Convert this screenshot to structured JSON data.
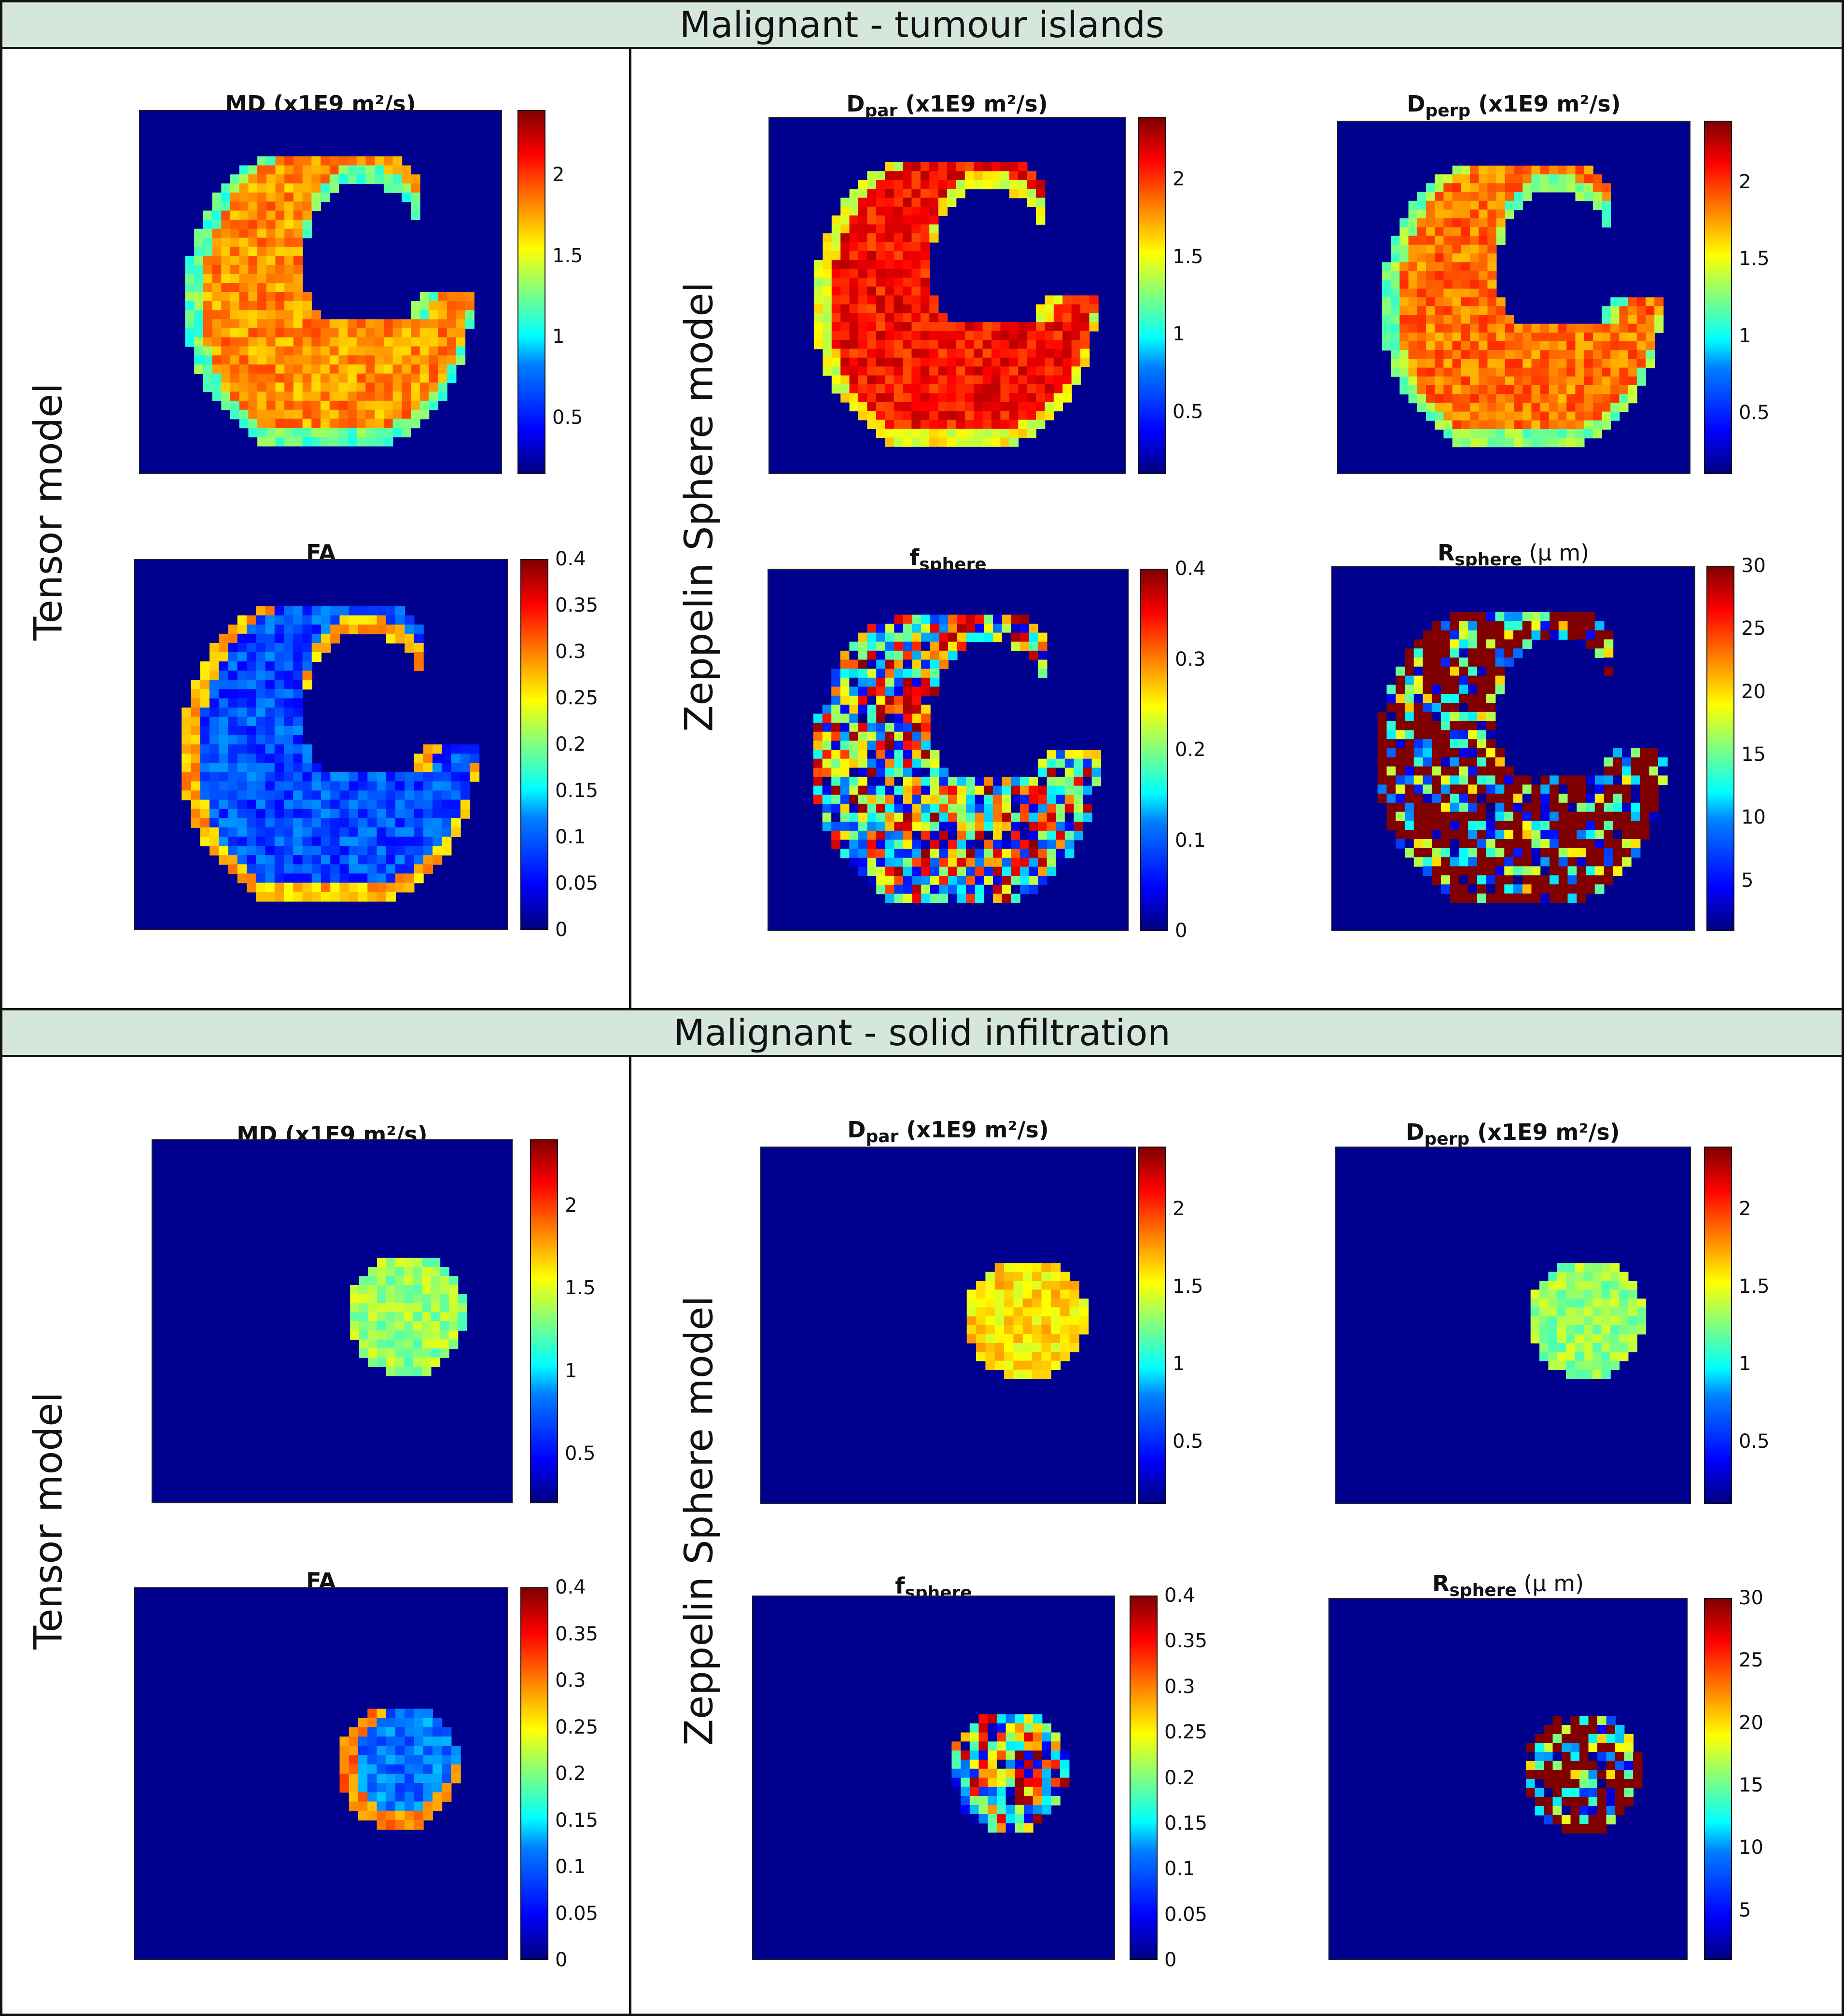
{
  "sections": [
    {
      "header": "Malignant - tumour islands",
      "left_label": "Tensor model",
      "right_label": "Zeppelin Sphere model",
      "panels": [
        {
          "id": "md",
          "title": "MD",
          "unit": " (x1E9 m²/s)",
          "sub": "",
          "ticks": [
            "2",
            "1.5",
            "1",
            "0.5"
          ],
          "range": [
            0.15,
            2.4
          ]
        },
        {
          "id": "fa",
          "title": "FA",
          "unit": "",
          "sub": "",
          "ticks": [
            "0.4",
            "0.35",
            "0.3",
            "0.25",
            "0.2",
            "0.15",
            "0.1",
            "0.05",
            "0"
          ],
          "range": [
            0,
            0.4
          ]
        },
        {
          "id": "dpar",
          "title": "D",
          "sub": "par",
          "unit": " (x1E9 m²/s)",
          "ticks": [
            "2",
            "1.5",
            "1",
            "0.5"
          ],
          "range": [
            0.1,
            2.4
          ]
        },
        {
          "id": "dperp",
          "title": "D",
          "sub": "perp",
          "unit": " (x1E9 m²/s)",
          "ticks": [
            "2",
            "1.5",
            "1",
            "0.5"
          ],
          "range": [
            0.1,
            2.4
          ]
        },
        {
          "id": "fsphere",
          "title": "f",
          "sub": "sphere",
          "unit": "",
          "ticks": [
            "0.4",
            "0.3",
            "0.2",
            "0.1",
            "0"
          ],
          "range": [
            0,
            0.4
          ]
        },
        {
          "id": "rsphere",
          "title": "R",
          "sub": "sphere",
          "unit": " (μ m)",
          "ticks": [
            "30",
            "25",
            "20",
            "15",
            "10",
            "5"
          ],
          "range": [
            1,
            30
          ]
        }
      ]
    },
    {
      "header": "Malignant - solid infiltration",
      "left_label": "Tensor model",
      "right_label": "Zeppelin Sphere model",
      "panels": [
        {
          "id": "md",
          "title": "MD",
          "unit": " (x1E9 m²/s)",
          "sub": "",
          "ticks": [
            "2",
            "1.5",
            "1",
            "0.5"
          ],
          "range": [
            0.2,
            2.4
          ]
        },
        {
          "id": "fa",
          "title": "FA",
          "unit": "",
          "sub": "",
          "ticks": [
            "0.4",
            "0.35",
            "0.3",
            "0.25",
            "0.2",
            "0.15",
            "0.1",
            "0.05",
            "0"
          ],
          "range": [
            0,
            0.4
          ]
        },
        {
          "id": "dpar",
          "title": "D",
          "sub": "par",
          "unit": " (x1E9 m²/s)",
          "ticks": [
            "2",
            "1.5",
            "1",
            "0.5"
          ],
          "range": [
            0.1,
            2.4
          ]
        },
        {
          "id": "dperp",
          "title": "D",
          "sub": "perp",
          "unit": " (x1E9 m²/s)",
          "ticks": [
            "2",
            "1.5",
            "1",
            "0.5"
          ],
          "range": [
            0.1,
            2.4
          ]
        },
        {
          "id": "fsphere",
          "title": "f",
          "sub": "sphere",
          "unit": "",
          "ticks": [
            "0.4",
            "0.35",
            "0.3",
            "0.25",
            "0.2",
            "0.15",
            "0.1",
            "0.05",
            "0"
          ],
          "range": [
            0,
            0.4
          ]
        },
        {
          "id": "rsphere",
          "title": "R",
          "sub": "sphere",
          "unit": " (μ m)",
          "ticks": [
            "30",
            "25",
            "20",
            "15",
            "10",
            "5"
          ],
          "range": [
            1,
            30
          ]
        }
      ]
    }
  ],
  "chart_data": {
    "type": "heatmap",
    "colormap": "jet",
    "description_units": {
      "md": "x1E9 m²/s",
      "dpar": "x1E9 m²/s",
      "dperp": "x1E9 m²/s",
      "rsphere": "μ m"
    },
    "background_value": "minimum of colour scale (dark blue)",
    "typical_tissue_values": {
      "tumour_islands": {
        "md": 1.8,
        "fa": 0.08,
        "dpar": 2.1,
        "dperp": 1.85,
        "fsphere": 0.2,
        "rsphere": 25
      },
      "solid_infiltration": {
        "md": 1.35,
        "fa": 0.1,
        "dpar": 1.6,
        "dperp": 1.3,
        "fsphere": 0.2,
        "rsphere": 25
      }
    }
  }
}
